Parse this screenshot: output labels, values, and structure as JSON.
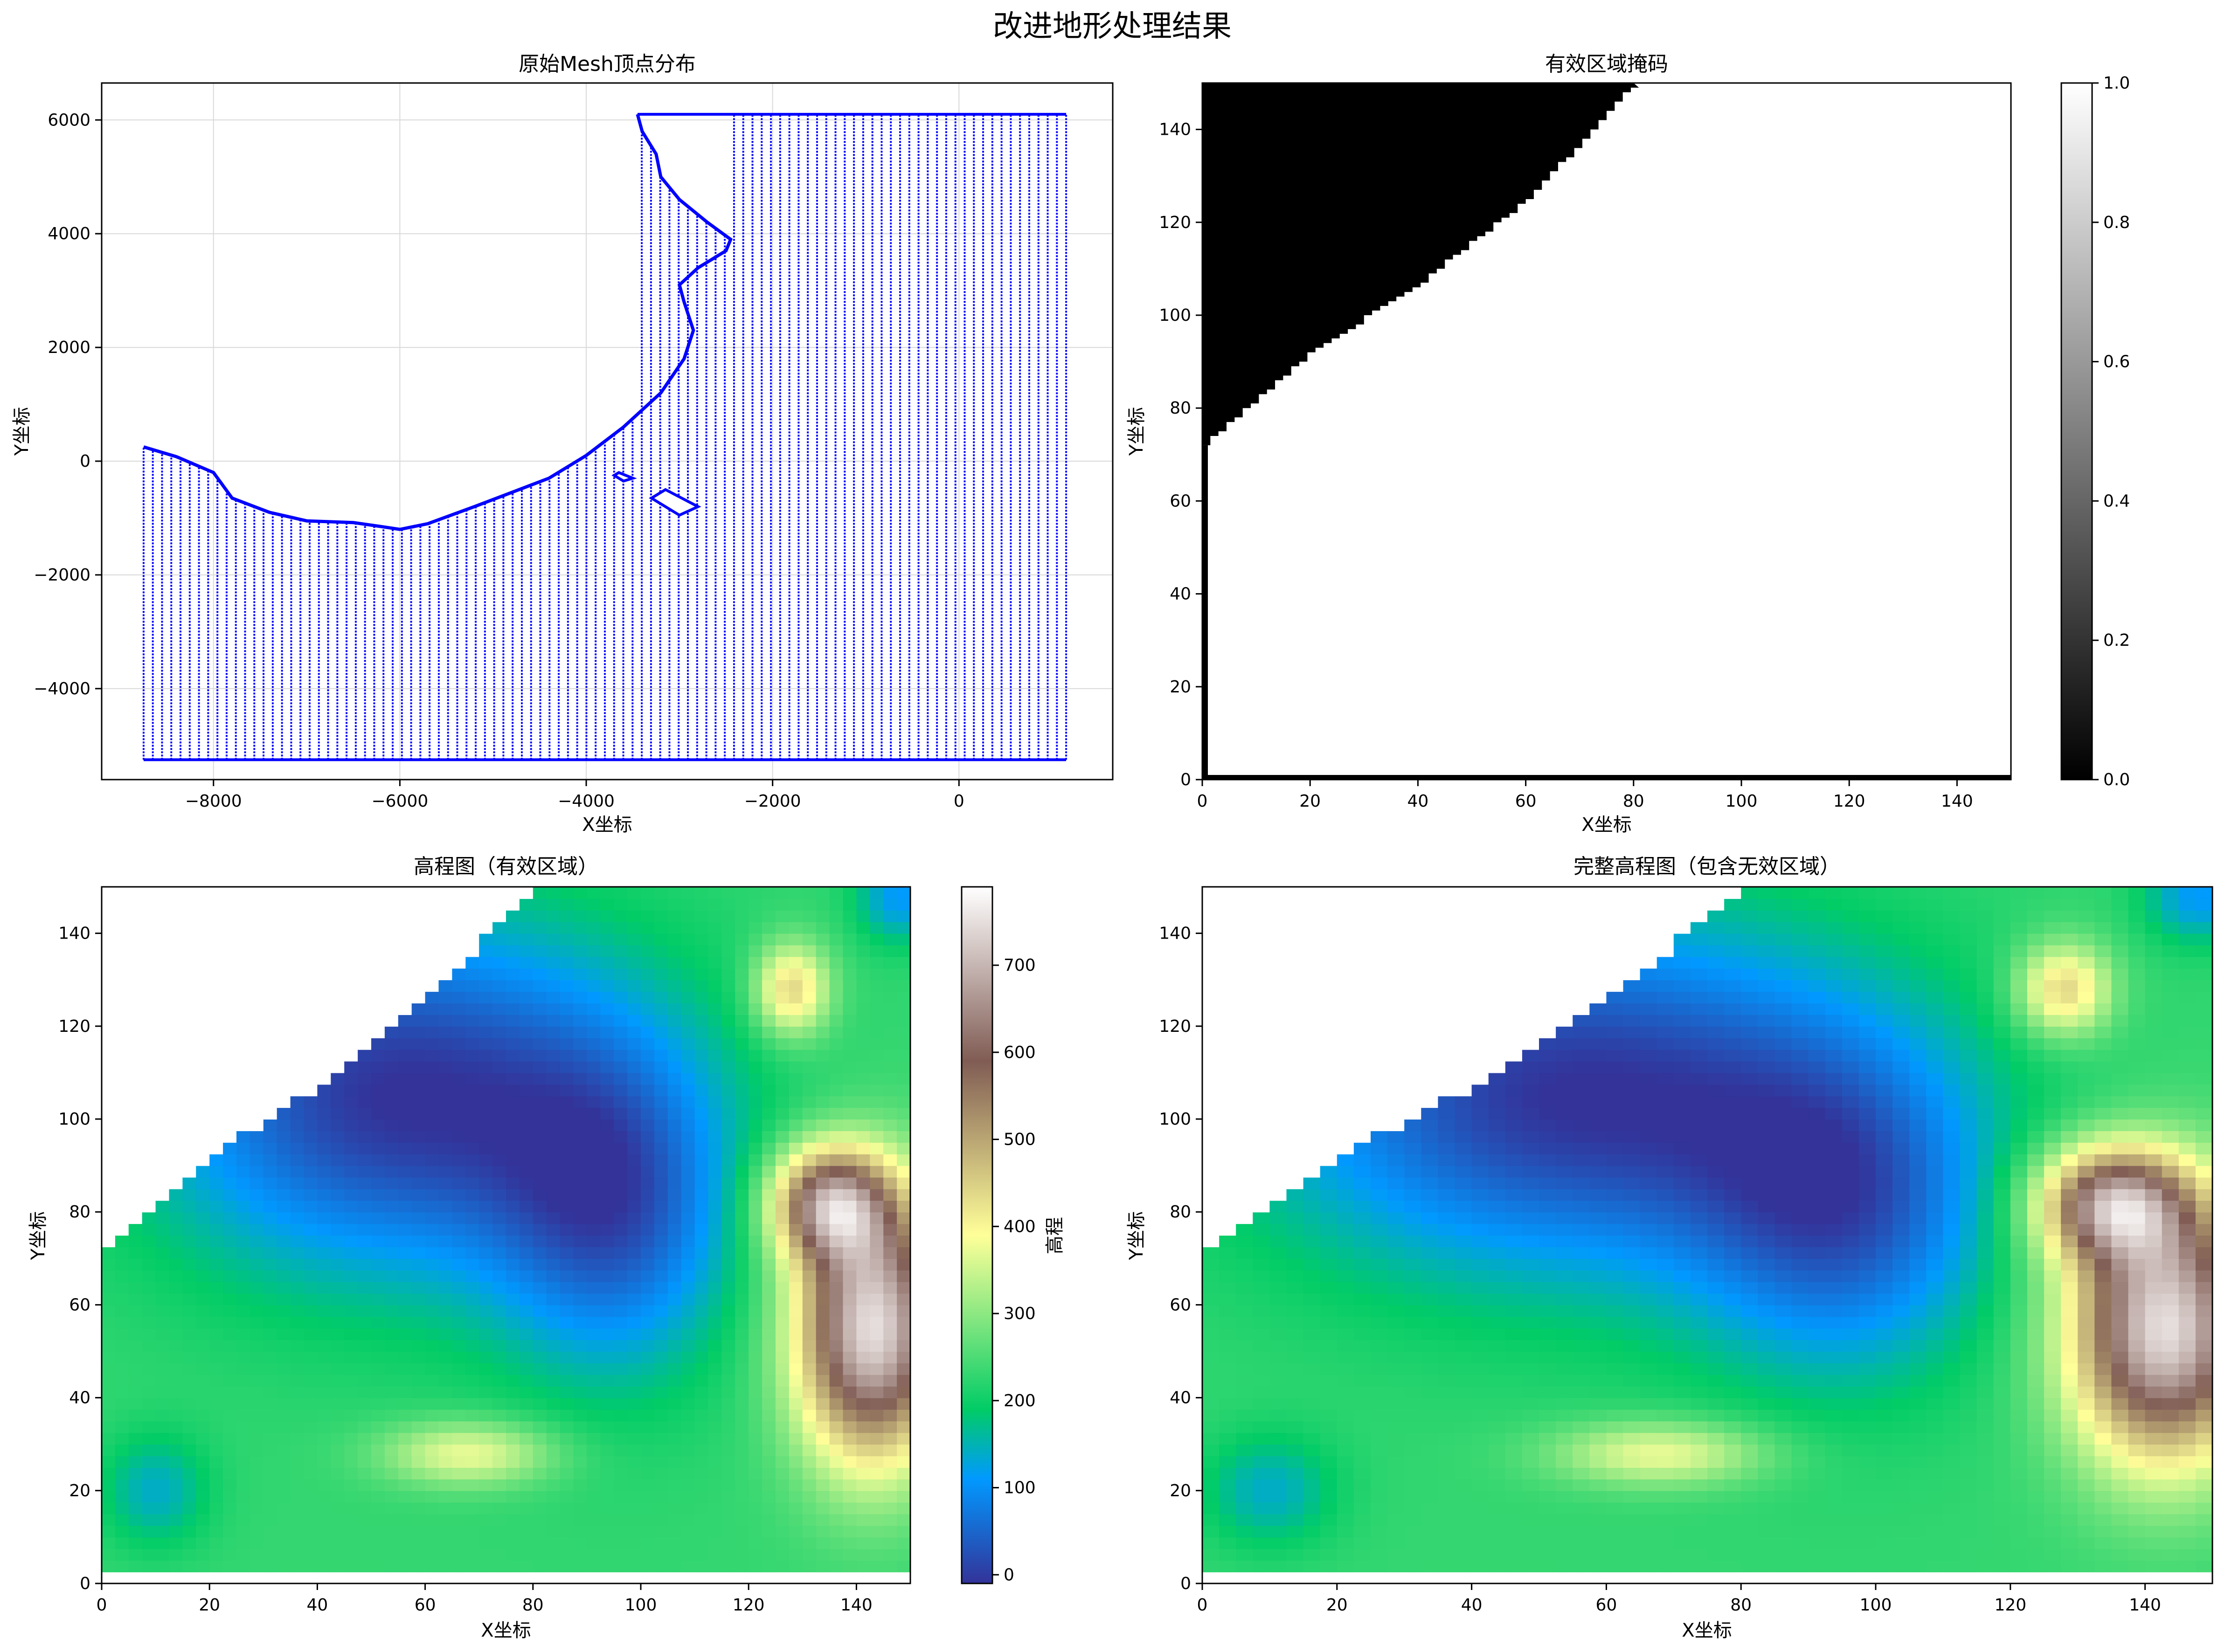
{
  "figure": {
    "title": "改进地形处理结果"
  },
  "chart_data": [
    {
      "type": "scatter",
      "title": "原始Mesh顶点分布",
      "xlabel": "X坐标",
      "ylabel": "Y坐标",
      "xlim": [
        -9200,
        1650
      ],
      "ylim": [
        -5600,
        6650
      ],
      "xticks": [
        -8000,
        -6000,
        -4000,
        -2000,
        0
      ],
      "yticks": [
        -4000,
        -2000,
        0,
        2000,
        4000,
        6000
      ],
      "grid": true,
      "point_color": "#0000ff",
      "series": [
        {
          "x_range": [
            -8750,
            1150
          ],
          "y_range": [
            -5250,
            6100
          ],
          "boundary_top": [
            [
              -8750,
              250
            ],
            [
              -8400,
              80
            ],
            [
              -8000,
              -200
            ],
            [
              -7800,
              -650
            ],
            [
              -7400,
              -900
            ],
            [
              -7000,
              -1050
            ],
            [
              -6500,
              -1080
            ],
            [
              -6200,
              -1150
            ],
            [
              -6000,
              -1200
            ],
            [
              -5700,
              -1100
            ],
            [
              -5200,
              -800
            ],
            [
              -4800,
              -550
            ],
            [
              -4400,
              -300
            ],
            [
              -4000,
              100
            ],
            [
              -3600,
              600
            ],
            [
              -3200,
              1200
            ],
            [
              -2950,
              1800
            ],
            [
              -2850,
              2300
            ],
            [
              -2950,
              2800
            ],
            [
              -3000,
              3100
            ],
            [
              -2800,
              3400
            ],
            [
              -2500,
              3700
            ],
            [
              -2450,
              3900
            ],
            [
              -2700,
              4200
            ],
            [
              -3000,
              4600
            ],
            [
              -3200,
              5000
            ],
            [
              -3250,
              5400
            ],
            [
              -3400,
              5800
            ],
            [
              -3450,
              6100
            ]
          ],
          "holes": [
            [
              [
                -3700,
                -250
              ],
              [
                -3600,
                -350
              ],
              [
                -3500,
                -300
              ],
              [
                -3650,
                -200
              ]
            ],
            [
              [
                -3300,
                -650
              ],
              [
                -3000,
                -950
              ],
              [
                -2800,
                -800
              ],
              [
                -3150,
                -500
              ]
            ]
          ]
        }
      ]
    },
    {
      "type": "heatmap",
      "title": "有效区域掩码",
      "xlabel": "X坐标",
      "ylabel": "Y坐标",
      "xlim": [
        0,
        150
      ],
      "ylim": [
        0,
        150
      ],
      "xticks": [
        0,
        20,
        40,
        60,
        80,
        100,
        120,
        140
      ],
      "yticks": [
        0,
        20,
        40,
        60,
        80,
        100,
        120,
        140
      ],
      "colormap": "gray",
      "colorbar": {
        "range": [
          0,
          1
        ],
        "ticks": [
          0.0,
          0.2,
          0.4,
          0.6,
          0.8,
          1.0
        ]
      },
      "valid_boundary": [
        [
          0,
          72
        ],
        [
          20,
          92
        ],
        [
          40,
          107
        ],
        [
          60,
          125
        ],
        [
          80,
          150
        ]
      ]
    },
    {
      "type": "heatmap",
      "title": "高程图（有效区域）",
      "xlabel": "X坐标",
      "ylabel": "Y坐标",
      "xlim": [
        0,
        150
      ],
      "ylim": [
        0,
        150
      ],
      "xticks": [
        0,
        20,
        40,
        60,
        80,
        100,
        120,
        140
      ],
      "yticks": [
        0,
        20,
        40,
        60,
        80,
        100,
        120,
        140
      ],
      "colormap": "terrain",
      "colorbar": {
        "label": "高程",
        "range": [
          -10,
          790
        ],
        "ticks": [
          0,
          100,
          200,
          300,
          400,
          500,
          600,
          700
        ]
      }
    },
    {
      "type": "heatmap",
      "title": "完整高程图（包含无效区域）",
      "xlabel": "X坐标",
      "ylabel": "Y坐标",
      "xlim": [
        0,
        150
      ],
      "ylim": [
        0,
        150
      ],
      "xticks": [
        0,
        20,
        40,
        60,
        80,
        100,
        120,
        140
      ],
      "yticks": [
        0,
        20,
        40,
        60,
        80,
        100,
        120,
        140
      ],
      "colormap": "terrain"
    }
  ]
}
